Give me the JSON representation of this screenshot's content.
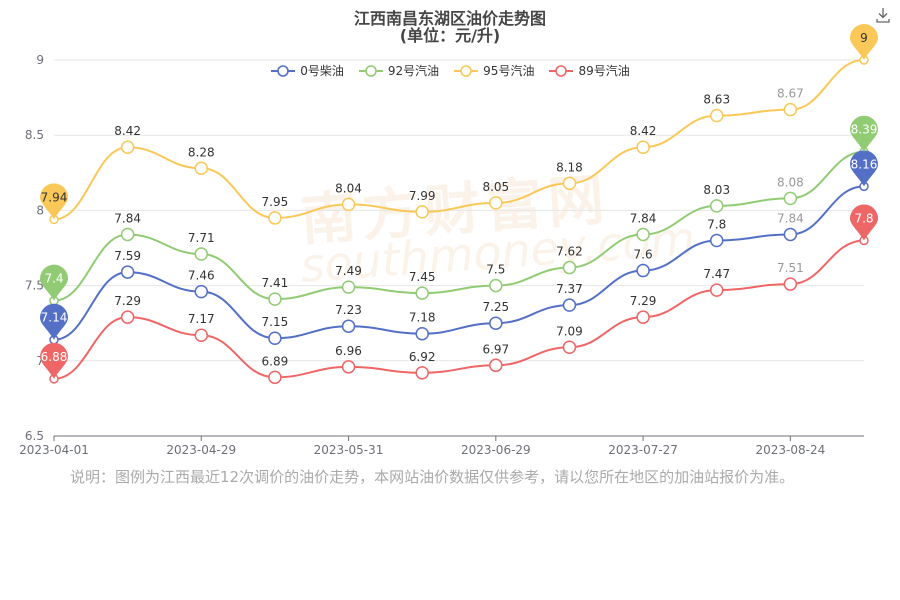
{
  "title": "江西南昌东湖区油价走势图",
  "subtitle": "(单位：元/升)",
  "watermark": "南方财富网",
  "watermark_sub": "southmoney.com",
  "note": "说明：图例为江西最近12次调价的油价走势，本网站油价数据仅供参考，请以您所在地区的加油站报价为准。",
  "chart_data": {
    "type": "line",
    "title": "江西南昌东湖区油价走势图",
    "subtitle": "(单位：元/升)",
    "xlabel": "",
    "ylabel": "",
    "ylim": [
      6.5,
      9
    ],
    "y_ticks": [
      "6.5",
      "7",
      "7.5",
      "8",
      "8.5",
      "9"
    ],
    "x_tick_labels": [
      "2023-04-01",
      "2023-04-29",
      "2023-05-31",
      "2023-06-29",
      "2023-07-27",
      "2023-08-24"
    ],
    "x_tick_positions": [
      0,
      3,
      6,
      9,
      12,
      15
    ],
    "x": [
      0,
      1,
      2,
      3,
      4,
      5,
      6,
      7,
      8,
      9,
      10,
      11
    ],
    "grid": true,
    "legend_position": "top-center",
    "series": [
      {
        "name": "0号柴油",
        "color": "#5470c6",
        "values": [
          7.14,
          7.59,
          7.46,
          7.15,
          7.23,
          7.18,
          7.25,
          7.37,
          7.6,
          7.8,
          7.84,
          8.16
        ]
      },
      {
        "name": "92号汽油",
        "color": "#91cc75",
        "values": [
          7.4,
          7.84,
          7.71,
          7.41,
          7.49,
          7.45,
          7.5,
          7.62,
          7.84,
          8.03,
          8.08,
          8.39
        ]
      },
      {
        "name": "95号汽油",
        "color": "#fac858",
        "values": [
          7.94,
          8.42,
          8.28,
          7.95,
          8.04,
          7.99,
          8.05,
          8.18,
          8.42,
          8.63,
          8.67,
          9
        ]
      },
      {
        "name": "89号汽油",
        "color": "#ee6666",
        "values": [
          6.88,
          7.29,
          7.17,
          6.89,
          6.96,
          6.92,
          6.97,
          7.09,
          7.29,
          7.47,
          7.51,
          7.8
        ]
      }
    ],
    "pins": [
      {
        "series": 0,
        "label": "7.14",
        "index": 0
      },
      {
        "series": 0,
        "label": "8.16",
        "index": 11
      },
      {
        "series": 1,
        "label": "7.4",
        "index": 0
      },
      {
        "series": 1,
        "label": "8.39",
        "index": 11
      },
      {
        "series": 2,
        "label": "7.94",
        "index": 0
      },
      {
        "series": 2,
        "label": "9",
        "index": 11
      },
      {
        "series": 3,
        "label": "6.88",
        "index": 0
      },
      {
        "series": 3,
        "label": "7.8",
        "index": 11
      }
    ]
  },
  "icons": {
    "download": "download-icon"
  }
}
